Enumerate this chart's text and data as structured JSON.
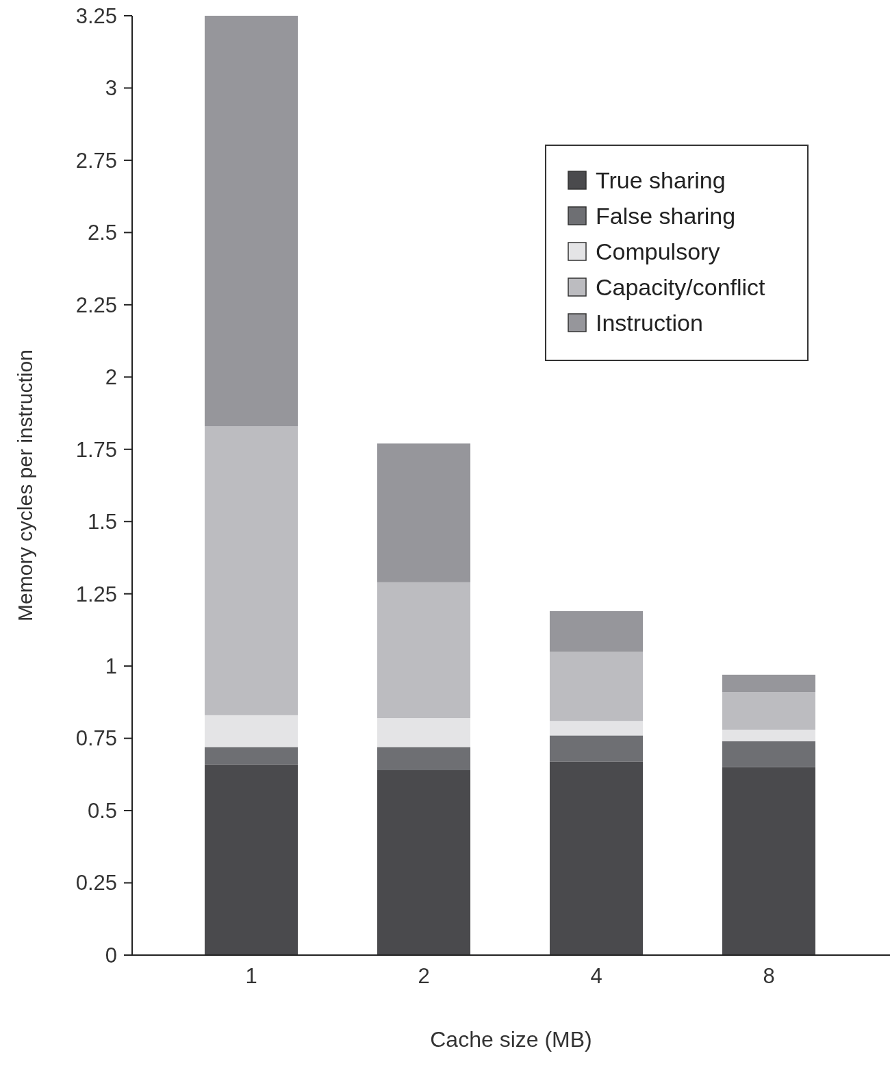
{
  "chart_data": {
    "type": "bar",
    "stacked": true,
    "xlabel": "Cache size (MB)",
    "ylabel": "Memory cycles per instruction",
    "categories": [
      "1",
      "2",
      "4",
      "8"
    ],
    "series": [
      {
        "name": "True sharing",
        "color": "#4a4a4d",
        "values": [
          0.66,
          0.64,
          0.67,
          0.65
        ]
      },
      {
        "name": "False sharing",
        "color": "#6e6f73",
        "values": [
          0.06,
          0.08,
          0.09,
          0.09
        ]
      },
      {
        "name": "Compulsory",
        "color": "#e4e4e6",
        "values": [
          0.11,
          0.1,
          0.05,
          0.04
        ]
      },
      {
        "name": "Capacity/conflict",
        "color": "#bcbcc0",
        "values": [
          1.0,
          0.47,
          0.24,
          0.13
        ]
      },
      {
        "name": "Instruction",
        "color": "#96969b",
        "values": [
          1.42,
          0.48,
          0.14,
          0.06
        ]
      }
    ],
    "ylim": [
      0,
      3.25
    ],
    "yticks": [
      0,
      0.25,
      0.5,
      0.75,
      1,
      1.25,
      1.5,
      1.75,
      2,
      2.25,
      2.5,
      2.75,
      3,
      3.25
    ],
    "legend": "top right",
    "grid": false
  }
}
